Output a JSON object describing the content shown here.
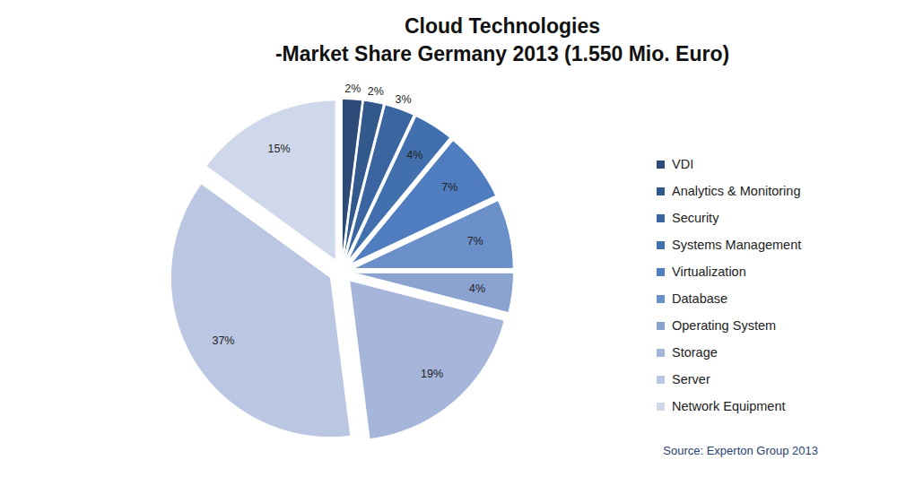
{
  "chart_data": {
    "type": "pie",
    "title": "Cloud Technologies",
    "subtitle": "-Market Share Germany 2013 (1.550 Mio. Euro)",
    "source": "Source: Experton Group 2013",
    "categories": [
      "VDI",
      "Analytics & Monitoring",
      "Security",
      "Systems Management",
      "Virtualization",
      "Database",
      "Operating System",
      "Storage",
      "Server",
      "Network Equipment"
    ],
    "values": [
      2,
      2,
      3,
      4,
      7,
      7,
      4,
      19,
      37,
      15
    ],
    "value_labels": [
      "2%",
      "2%",
      "3%",
      "4%",
      "7%",
      "7%",
      "4%",
      "19%",
      "37%",
      "15%"
    ],
    "colors": [
      "#2d4a78",
      "#33588b",
      "#3b65a0",
      "#4270ae",
      "#4f7dbf",
      "#6b8fc8",
      "#8aa2d0",
      "#a6b6da",
      "#bac6e2",
      "#cfd8eb"
    ],
    "data_labels": true,
    "legend": "right"
  }
}
